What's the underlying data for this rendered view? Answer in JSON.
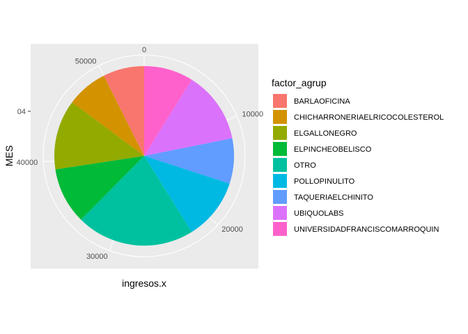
{
  "chart_data": {
    "type": "pie",
    "theme_panel_bg": "#ebebeb",
    "xlabel": "ingresos.x",
    "ylabel": "MES",
    "y_tick_label": "04",
    "theta_ticks": [
      0,
      10000,
      20000,
      30000,
      40000,
      50000
    ],
    "theta_max": 54000,
    "legend_title": "factor_agrup",
    "legend_position": "right",
    "direction": "clockwise",
    "series": [
      {
        "name": "UNIVERSIDADFRANCISCOMARROQUIN",
        "value": 4800,
        "color": "#FF61CC"
      },
      {
        "name": "UBIQUOLABS",
        "value": 7000,
        "color": "#DB72FB"
      },
      {
        "name": "TAQUERIAELCHINITO",
        "value": 4400,
        "color": "#619CFF"
      },
      {
        "name": "POLLOPINULITO",
        "value": 6000,
        "color": "#00B9E3"
      },
      {
        "name": "OTRO",
        "value": 11500,
        "color": "#00C19F"
      },
      {
        "name": "ELPINCHEOBELISCO",
        "value": 5500,
        "color": "#00BA38"
      },
      {
        "name": "ELGALLONEGRO",
        "value": 6800,
        "color": "#93AA00"
      },
      {
        "name": "CHICHARRONERIAELRICOCOLESTEROL",
        "value": 4000,
        "color": "#D39200"
      },
      {
        "name": "BARLAOFICINA",
        "value": 4000,
        "color": "#F8766D"
      }
    ],
    "legend_order": [
      "BARLAOFICINA",
      "CHICHARRONERIAELRICOCOLESTEROL",
      "ELGALLONEGRO",
      "ELPINCHEOBELISCO",
      "OTRO",
      "POLLOPINULITO",
      "TAQUERIAELCHINITO",
      "UBIQUOLABS",
      "UNIVERSIDADFRANCISCOMARROQUIN"
    ]
  }
}
